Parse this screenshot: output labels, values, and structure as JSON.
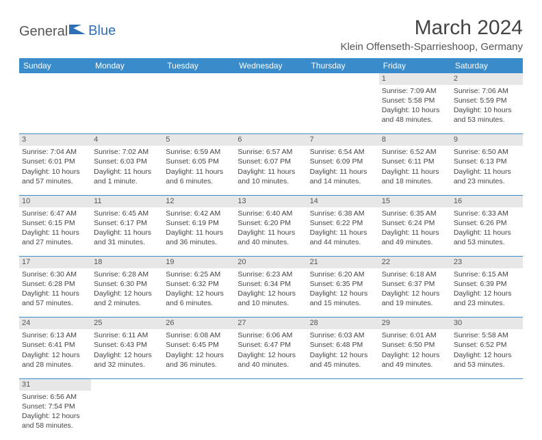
{
  "header": {
    "logo_text_1": "General",
    "logo_text_2": "Blue",
    "month_title": "March 2024",
    "location": "Klein Offenseth-Sparrieshoop, Germany"
  },
  "colors": {
    "header_bg": "#3a8bc9",
    "header_text": "#ffffff",
    "daynum_bg": "#e7e7e7",
    "border": "#3a8bc9",
    "logo_blue": "#2e6fb5"
  },
  "weekdays": [
    "Sunday",
    "Monday",
    "Tuesday",
    "Wednesday",
    "Thursday",
    "Friday",
    "Saturday"
  ],
  "weeks": [
    [
      null,
      null,
      null,
      null,
      null,
      {
        "n": "1",
        "sunrise": "Sunrise: 7:09 AM",
        "sunset": "Sunset: 5:58 PM",
        "day1": "Daylight: 10 hours",
        "day2": "and 48 minutes."
      },
      {
        "n": "2",
        "sunrise": "Sunrise: 7:06 AM",
        "sunset": "Sunset: 5:59 PM",
        "day1": "Daylight: 10 hours",
        "day2": "and 53 minutes."
      }
    ],
    [
      {
        "n": "3",
        "sunrise": "Sunrise: 7:04 AM",
        "sunset": "Sunset: 6:01 PM",
        "day1": "Daylight: 10 hours",
        "day2": "and 57 minutes."
      },
      {
        "n": "4",
        "sunrise": "Sunrise: 7:02 AM",
        "sunset": "Sunset: 6:03 PM",
        "day1": "Daylight: 11 hours",
        "day2": "and 1 minute."
      },
      {
        "n": "5",
        "sunrise": "Sunrise: 6:59 AM",
        "sunset": "Sunset: 6:05 PM",
        "day1": "Daylight: 11 hours",
        "day2": "and 6 minutes."
      },
      {
        "n": "6",
        "sunrise": "Sunrise: 6:57 AM",
        "sunset": "Sunset: 6:07 PM",
        "day1": "Daylight: 11 hours",
        "day2": "and 10 minutes."
      },
      {
        "n": "7",
        "sunrise": "Sunrise: 6:54 AM",
        "sunset": "Sunset: 6:09 PM",
        "day1": "Daylight: 11 hours",
        "day2": "and 14 minutes."
      },
      {
        "n": "8",
        "sunrise": "Sunrise: 6:52 AM",
        "sunset": "Sunset: 6:11 PM",
        "day1": "Daylight: 11 hours",
        "day2": "and 18 minutes."
      },
      {
        "n": "9",
        "sunrise": "Sunrise: 6:50 AM",
        "sunset": "Sunset: 6:13 PM",
        "day1": "Daylight: 11 hours",
        "day2": "and 23 minutes."
      }
    ],
    [
      {
        "n": "10",
        "sunrise": "Sunrise: 6:47 AM",
        "sunset": "Sunset: 6:15 PM",
        "day1": "Daylight: 11 hours",
        "day2": "and 27 minutes."
      },
      {
        "n": "11",
        "sunrise": "Sunrise: 6:45 AM",
        "sunset": "Sunset: 6:17 PM",
        "day1": "Daylight: 11 hours",
        "day2": "and 31 minutes."
      },
      {
        "n": "12",
        "sunrise": "Sunrise: 6:42 AM",
        "sunset": "Sunset: 6:19 PM",
        "day1": "Daylight: 11 hours",
        "day2": "and 36 minutes."
      },
      {
        "n": "13",
        "sunrise": "Sunrise: 6:40 AM",
        "sunset": "Sunset: 6:20 PM",
        "day1": "Daylight: 11 hours",
        "day2": "and 40 minutes."
      },
      {
        "n": "14",
        "sunrise": "Sunrise: 6:38 AM",
        "sunset": "Sunset: 6:22 PM",
        "day1": "Daylight: 11 hours",
        "day2": "and 44 minutes."
      },
      {
        "n": "15",
        "sunrise": "Sunrise: 6:35 AM",
        "sunset": "Sunset: 6:24 PM",
        "day1": "Daylight: 11 hours",
        "day2": "and 49 minutes."
      },
      {
        "n": "16",
        "sunrise": "Sunrise: 6:33 AM",
        "sunset": "Sunset: 6:26 PM",
        "day1": "Daylight: 11 hours",
        "day2": "and 53 minutes."
      }
    ],
    [
      {
        "n": "17",
        "sunrise": "Sunrise: 6:30 AM",
        "sunset": "Sunset: 6:28 PM",
        "day1": "Daylight: 11 hours",
        "day2": "and 57 minutes."
      },
      {
        "n": "18",
        "sunrise": "Sunrise: 6:28 AM",
        "sunset": "Sunset: 6:30 PM",
        "day1": "Daylight: 12 hours",
        "day2": "and 2 minutes."
      },
      {
        "n": "19",
        "sunrise": "Sunrise: 6:25 AM",
        "sunset": "Sunset: 6:32 PM",
        "day1": "Daylight: 12 hours",
        "day2": "and 6 minutes."
      },
      {
        "n": "20",
        "sunrise": "Sunrise: 6:23 AM",
        "sunset": "Sunset: 6:34 PM",
        "day1": "Daylight: 12 hours",
        "day2": "and 10 minutes."
      },
      {
        "n": "21",
        "sunrise": "Sunrise: 6:20 AM",
        "sunset": "Sunset: 6:35 PM",
        "day1": "Daylight: 12 hours",
        "day2": "and 15 minutes."
      },
      {
        "n": "22",
        "sunrise": "Sunrise: 6:18 AM",
        "sunset": "Sunset: 6:37 PM",
        "day1": "Daylight: 12 hours",
        "day2": "and 19 minutes."
      },
      {
        "n": "23",
        "sunrise": "Sunrise: 6:15 AM",
        "sunset": "Sunset: 6:39 PM",
        "day1": "Daylight: 12 hours",
        "day2": "and 23 minutes."
      }
    ],
    [
      {
        "n": "24",
        "sunrise": "Sunrise: 6:13 AM",
        "sunset": "Sunset: 6:41 PM",
        "day1": "Daylight: 12 hours",
        "day2": "and 28 minutes."
      },
      {
        "n": "25",
        "sunrise": "Sunrise: 6:11 AM",
        "sunset": "Sunset: 6:43 PM",
        "day1": "Daylight: 12 hours",
        "day2": "and 32 minutes."
      },
      {
        "n": "26",
        "sunrise": "Sunrise: 6:08 AM",
        "sunset": "Sunset: 6:45 PM",
        "day1": "Daylight: 12 hours",
        "day2": "and 36 minutes."
      },
      {
        "n": "27",
        "sunrise": "Sunrise: 6:06 AM",
        "sunset": "Sunset: 6:47 PM",
        "day1": "Daylight: 12 hours",
        "day2": "and 40 minutes."
      },
      {
        "n": "28",
        "sunrise": "Sunrise: 6:03 AM",
        "sunset": "Sunset: 6:48 PM",
        "day1": "Daylight: 12 hours",
        "day2": "and 45 minutes."
      },
      {
        "n": "29",
        "sunrise": "Sunrise: 6:01 AM",
        "sunset": "Sunset: 6:50 PM",
        "day1": "Daylight: 12 hours",
        "day2": "and 49 minutes."
      },
      {
        "n": "30",
        "sunrise": "Sunrise: 5:58 AM",
        "sunset": "Sunset: 6:52 PM",
        "day1": "Daylight: 12 hours",
        "day2": "and 53 minutes."
      }
    ],
    [
      {
        "n": "31",
        "sunrise": "Sunrise: 6:56 AM",
        "sunset": "Sunset: 7:54 PM",
        "day1": "Daylight: 12 hours",
        "day2": "and 58 minutes."
      },
      null,
      null,
      null,
      null,
      null,
      null
    ]
  ]
}
